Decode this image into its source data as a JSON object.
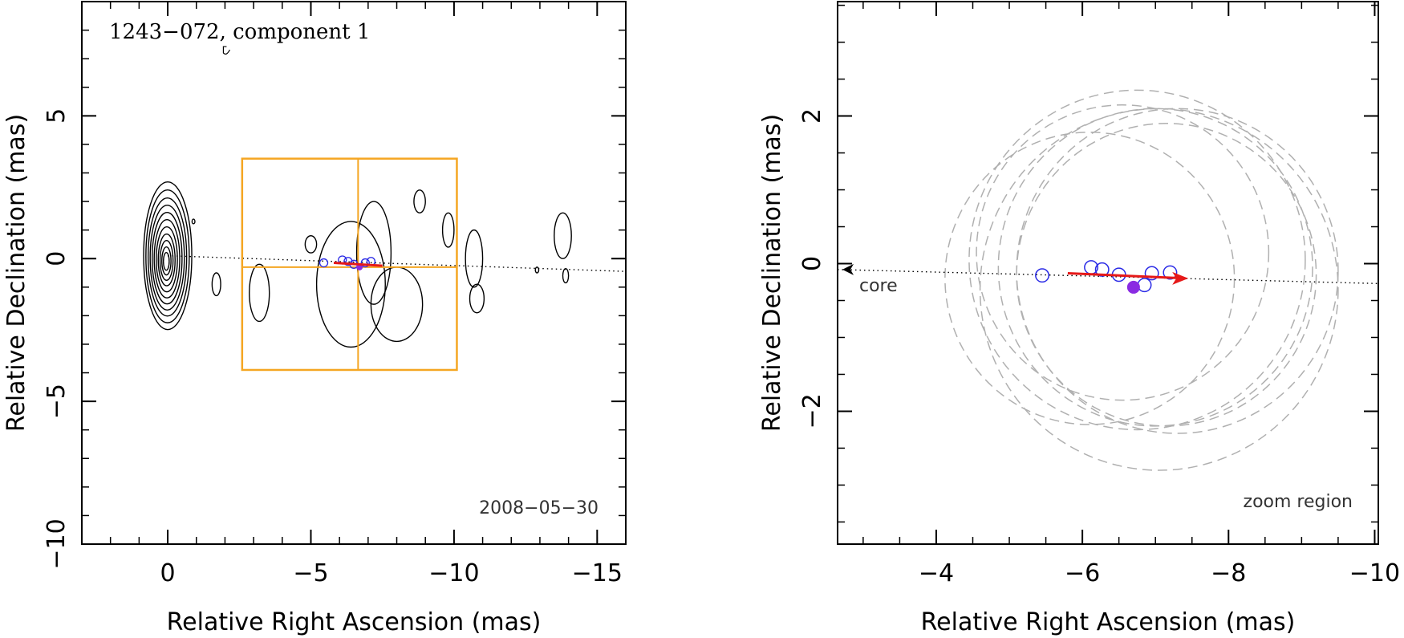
{
  "colors": {
    "contour": "#000000",
    "box": "#f5a623",
    "circle": "#2a2ae6",
    "fill_point": "#8a2be2",
    "arrow": "#e61919",
    "dashed": "#b0b0b0",
    "dotted": "#000000"
  },
  "chart_data": [
    {
      "type": "contour",
      "name": "left-panel",
      "title": "1243−072, component 1",
      "date": "2008−05−30",
      "xlabel": "Relative Right Ascension (mas)",
      "ylabel": "Relative Declination (mas)",
      "xlim": [
        3,
        -16
      ],
      "ylim": [
        -10,
        9
      ],
      "xticks": [
        0,
        -5,
        -10,
        -15
      ],
      "yticks": [
        -10,
        -5,
        0,
        5
      ],
      "xtick_labels": [
        "0",
        "−5",
        "−10",
        "−15"
      ],
      "ytick_labels": [
        "−10",
        "−5",
        "0",
        "5"
      ],
      "core_contour_scales": [
        0.12,
        0.19,
        0.27,
        0.35,
        0.44,
        0.53,
        0.62,
        0.71,
        0.8,
        0.9,
        1.0
      ],
      "core_center": [
        0,
        0.1
      ],
      "blobs": [
        {
          "cx": -7.2,
          "cy": 0.2,
          "rx": 0.6,
          "ry": 1.8
        },
        {
          "cx": -6.4,
          "cy": -0.9,
          "rx": 1.2,
          "ry": 2.2
        },
        {
          "cx": -8.0,
          "cy": -1.6,
          "rx": 0.9,
          "ry": 1.3
        },
        {
          "cx": -3.2,
          "cy": -1.2,
          "rx": 0.35,
          "ry": 1.0
        },
        {
          "cx": -5.0,
          "cy": 0.5,
          "rx": 0.2,
          "ry": 0.3
        },
        {
          "cx": -8.8,
          "cy": 2.0,
          "rx": 0.2,
          "ry": 0.4
        },
        {
          "cx": -9.8,
          "cy": 1.0,
          "rx": 0.2,
          "ry": 0.6
        },
        {
          "cx": -10.7,
          "cy": 0.0,
          "rx": 0.3,
          "ry": 1.0
        },
        {
          "cx": -10.8,
          "cy": -1.4,
          "rx": 0.25,
          "ry": 0.5
        },
        {
          "cx": -13.8,
          "cy": 0.8,
          "rx": 0.3,
          "ry": 0.8
        },
        {
          "cx": -13.9,
          "cy": -0.6,
          "rx": 0.1,
          "ry": 0.25
        },
        {
          "cx": -12.9,
          "cy": -0.4,
          "rx": 0.06,
          "ry": 0.1
        },
        {
          "cx": -1.7,
          "cy": -0.9,
          "rx": 0.15,
          "ry": 0.4
        },
        {
          "cx": -0.9,
          "cy": 1.3,
          "rx": 0.05,
          "ry": 0.08
        }
      ],
      "zoom_box": {
        "x": [
          -2.6,
          -10.1
        ],
        "y": [
          -3.9,
          3.5
        ],
        "cross_x": -6.65,
        "cross_y": -0.3
      },
      "dotted_line": {
        "x": [
          0,
          -16
        ],
        "y": [
          0.1,
          -0.45
        ]
      },
      "circles": [
        {
          "x": -5.45,
          "y": -0.15,
          "r": 0.12
        },
        {
          "x": -6.1,
          "y": -0.05,
          "r": 0.12
        },
        {
          "x": -6.3,
          "y": -0.1,
          "r": 0.12
        },
        {
          "x": -6.5,
          "y": -0.2,
          "r": 0.12
        },
        {
          "x": -6.9,
          "y": -0.15,
          "r": 0.12
        },
        {
          "x": -7.1,
          "y": -0.1,
          "r": 0.12
        }
      ],
      "filled_point": {
        "x": -6.7,
        "y": -0.3
      },
      "arrow": {
        "x": [
          -5.8,
          -7.5
        ],
        "y": [
          -0.15,
          -0.25
        ]
      },
      "beam": {
        "x": -2.0,
        "y": 7.2
      }
    },
    {
      "type": "scatter",
      "name": "right-panel",
      "annotation_core": "core",
      "annotation_zoom": "zoom region",
      "xlabel": "Relative Right Ascension (mas)",
      "ylabel": "Relative Declination (mas)",
      "xlim": [
        -2.65,
        -10.05
      ],
      "ylim": [
        -3.8,
        3.55
      ],
      "xticks": [
        -4,
        -6,
        -8,
        -10
      ],
      "yticks": [
        -2,
        0,
        2
      ],
      "xtick_labels": [
        "−4",
        "−6",
        "−8",
        "−10"
      ],
      "ytick_labels": [
        "−2",
        "0",
        "2"
      ],
      "dotted_line": {
        "x": [
          -2.65,
          -10.05
        ],
        "y": [
          -0.08,
          -0.27
        ]
      },
      "core_arrow_tip": {
        "x": -2.65,
        "y": -0.08
      },
      "circles": [
        {
          "x": -5.45,
          "y": -0.16
        },
        {
          "x": -6.12,
          "y": -0.05
        },
        {
          "x": -6.27,
          "y": -0.08
        },
        {
          "x": -6.5,
          "y": -0.15
        },
        {
          "x": -6.95,
          "y": -0.13
        },
        {
          "x": -7.2,
          "y": -0.12
        },
        {
          "x": -6.85,
          "y": -0.29
        }
      ],
      "circle_radius": 0.09,
      "filled_point": {
        "x": -6.7,
        "y": -0.32
      },
      "arrow": {
        "x": [
          -5.8,
          -7.45
        ],
        "y": [
          -0.13,
          -0.2
        ]
      },
      "dashed_circles": [
        {
          "cx": -6.1,
          "cy": -0.2,
          "r": 1.98
        },
        {
          "cx": -6.55,
          "cy": 0.15,
          "r": 2.0
        },
        {
          "cx": -6.75,
          "cy": 0.05,
          "r": 2.3
        },
        {
          "cx": -7.0,
          "cy": -0.05,
          "r": 2.15
        },
        {
          "cx": -7.15,
          "cy": -0.15,
          "r": 2.05
        },
        {
          "cx": -7.3,
          "cy": -0.1,
          "r": 2.2
        },
        {
          "cx": -7.05,
          "cy": -0.35,
          "r": 2.45
        }
      ]
    }
  ]
}
